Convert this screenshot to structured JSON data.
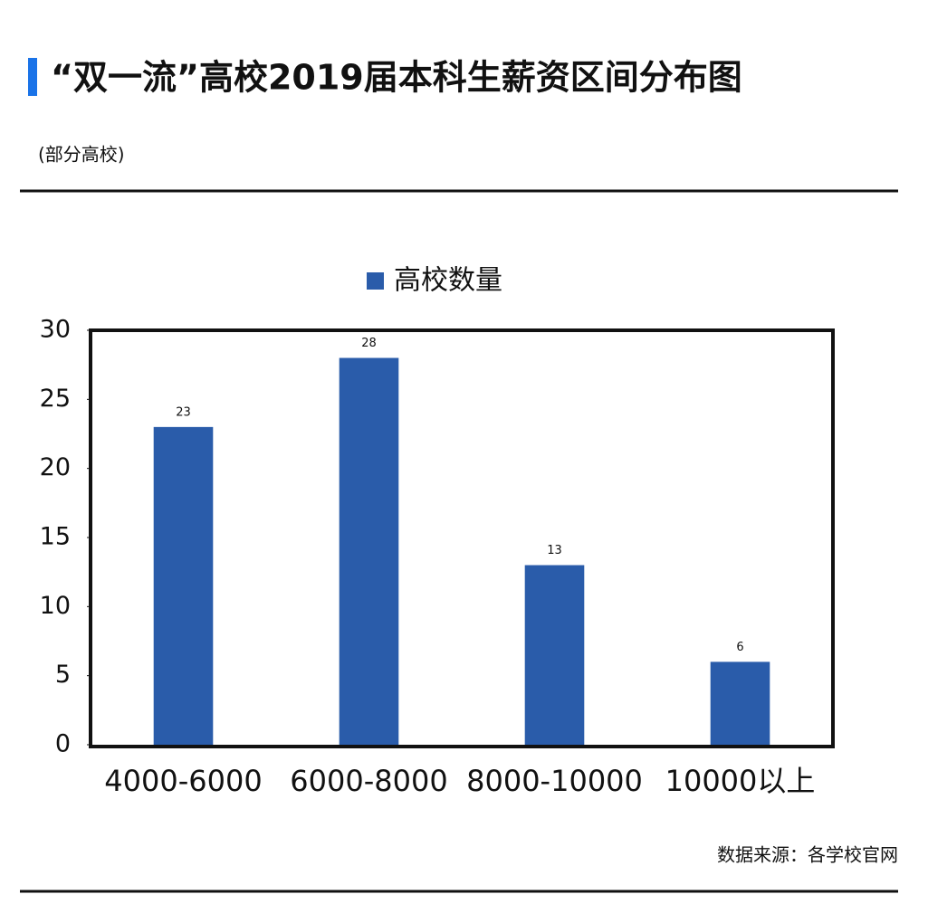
{
  "chart_data": {
    "type": "bar",
    "title": "“双一流”高校2019届本科生薪资区间分布图",
    "subtitle": "(部分高校)",
    "categories": [
      "4000-6000",
      "6000-8000",
      "8000-10000",
      "10000以上"
    ],
    "series": [
      {
        "name": "高校数量",
        "color": "#2a5caa",
        "values": [
          23,
          28,
          13,
          6
        ]
      }
    ],
    "ylim": [
      0,
      30
    ],
    "yticks": [
      0,
      5,
      10,
      15,
      20,
      25,
      30
    ],
    "legend": "top",
    "source": "数据来源：各学校官网"
  }
}
